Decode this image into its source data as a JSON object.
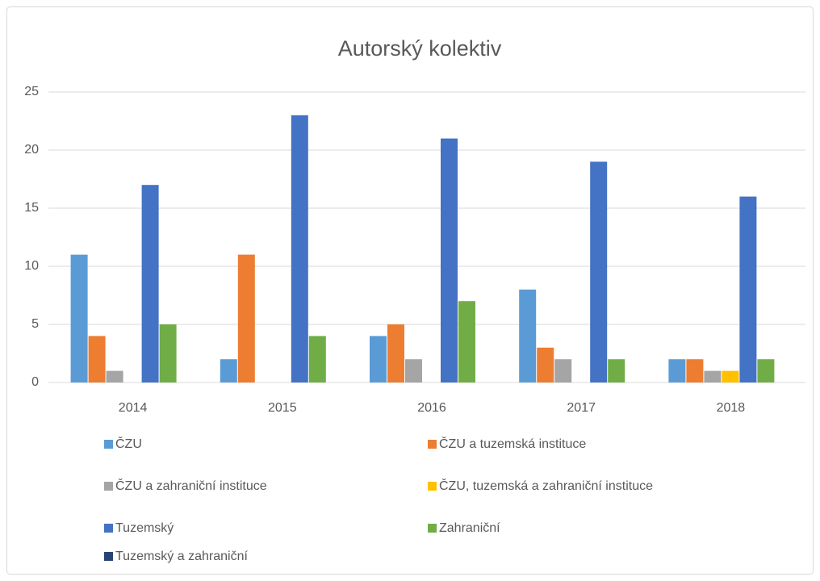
{
  "chart_data": {
    "type": "bar",
    "title": "Autorský kolektiv",
    "categories": [
      "2014",
      "2015",
      "2016",
      "2017",
      "2018"
    ],
    "series": [
      {
        "name": "ČZU",
        "color": "#5b9bd5",
        "values": [
          11,
          2,
          4,
          8,
          2
        ]
      },
      {
        "name": "ČZU a tuzemská instituce",
        "color": "#ed7d31",
        "values": [
          4,
          11,
          5,
          3,
          2
        ]
      },
      {
        "name": "ČZU a zahraniční instituce",
        "color": "#a5a5a5",
        "values": [
          1,
          0,
          2,
          2,
          1
        ]
      },
      {
        "name": "ČZU, tuzemská a zahraniční instituce",
        "color": "#ffc000",
        "values": [
          0,
          0,
          0,
          0,
          1
        ]
      },
      {
        "name": "Tuzemský",
        "color": "#4472c4",
        "values": [
          17,
          23,
          21,
          19,
          16
        ]
      },
      {
        "name": "Zahraniční",
        "color": "#70ad47",
        "values": [
          5,
          4,
          7,
          2,
          2
        ]
      },
      {
        "name": "Tuzemský a zahraniční",
        "color": "#264478",
        "values": [
          0,
          0,
          0,
          0,
          0
        ]
      }
    ],
    "ylim": [
      0,
      25
    ],
    "yticks": [
      0,
      5,
      10,
      15,
      20,
      25
    ],
    "grid": true,
    "legend": "bottom"
  }
}
